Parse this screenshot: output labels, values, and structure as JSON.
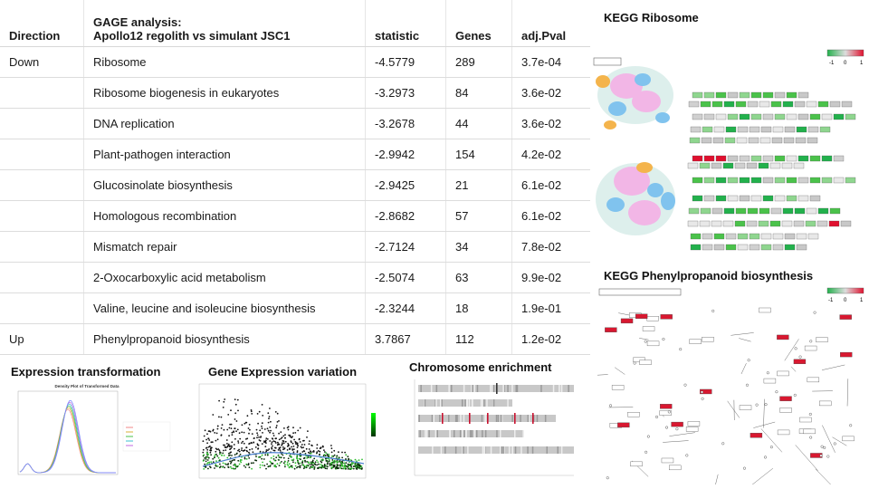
{
  "table": {
    "headers": {
      "direction": "Direction",
      "pathway_line1": "GAGE analysis:",
      "pathway_line2": "Apollo12 regolith vs simulant JSC1",
      "statistic": "statistic",
      "genes": "Genes",
      "adjp": "adj.Pval"
    },
    "rows": [
      {
        "direction": "Down",
        "pathway": "Ribosome",
        "statistic": "-4.5779",
        "genes": "289",
        "adjp": "3.7e-04"
      },
      {
        "direction": "",
        "pathway": "Ribosome biogenesis in eukaryotes",
        "statistic": "-3.2973",
        "genes": "84",
        "adjp": "3.6e-02"
      },
      {
        "direction": "",
        "pathway": "DNA replication",
        "statistic": "-3.2678",
        "genes": "44",
        "adjp": "3.6e-02"
      },
      {
        "direction": "",
        "pathway": "Plant-pathogen interaction",
        "statistic": "-2.9942",
        "genes": "154",
        "adjp": "4.2e-02"
      },
      {
        "direction": "",
        "pathway": "Glucosinolate biosynthesis",
        "statistic": "-2.9425",
        "genes": "21",
        "adjp": "6.1e-02"
      },
      {
        "direction": "",
        "pathway": "Homologous recombination",
        "statistic": "-2.8682",
        "genes": "57",
        "adjp": "6.1e-02"
      },
      {
        "direction": "",
        "pathway": "Mismatch repair",
        "statistic": "-2.7124",
        "genes": "34",
        "adjp": "7.8e-02"
      },
      {
        "direction": "",
        "pathway": "2-Oxocarboxylic acid metabolism",
        "statistic": "-2.5074",
        "genes": "63",
        "adjp": "9.9e-02"
      },
      {
        "direction": "",
        "pathway": "Valine, leucine and isoleucine biosynthesis",
        "statistic": "-2.3244",
        "genes": "18",
        "adjp": "1.9e-01"
      },
      {
        "direction": "Up",
        "pathway": "Phenylpropanoid biosynthesis",
        "statistic": "3.7867",
        "genes": "112",
        "adjp": "1.2e-02"
      }
    ]
  },
  "kegg_ribosome": {
    "title": "KEGG Ribosome",
    "legend": {
      "min": "-1",
      "mid": "0",
      "max": "1"
    }
  },
  "kegg_phenylpropanoid": {
    "title": "KEGG Phenylpropanoid biosynthesis",
    "legend": {
      "min": "-1",
      "mid": "0",
      "max": "1"
    }
  },
  "expression_transformation": {
    "title": "Expression transformation",
    "plot_title": "Density Plot of Transformed Data"
  },
  "gene_expression_variation": {
    "title": "Gene Expression variation"
  },
  "chromosome_enrichment": {
    "title": "Chromosome enrichment"
  },
  "colors": {
    "up": "#c8102e",
    "down": "#22b14c",
    "neutral": "#bdbdbd"
  }
}
